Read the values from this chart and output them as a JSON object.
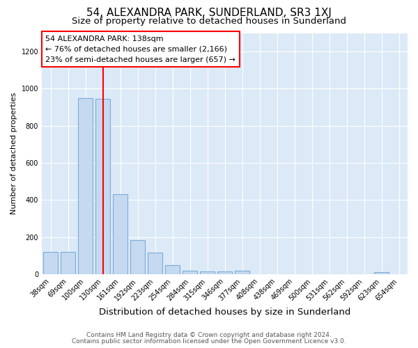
{
  "title": "54, ALEXANDRA PARK, SUNDERLAND, SR3 1XJ",
  "subtitle": "Size of property relative to detached houses in Sunderland",
  "xlabel": "Distribution of detached houses by size in Sunderland",
  "ylabel": "Number of detached properties",
  "categories": [
    "38sqm",
    "69sqm",
    "100sqm",
    "130sqm",
    "161sqm",
    "192sqm",
    "223sqm",
    "254sqm",
    "284sqm",
    "315sqm",
    "346sqm",
    "377sqm",
    "408sqm",
    "438sqm",
    "469sqm",
    "500sqm",
    "531sqm",
    "562sqm",
    "592sqm",
    "623sqm",
    "654sqm"
  ],
  "values": [
    120,
    120,
    950,
    945,
    430,
    185,
    115,
    47,
    18,
    15,
    15,
    18,
    0,
    0,
    0,
    0,
    0,
    0,
    0,
    10,
    0
  ],
  "bar_color": "#c5d9f1",
  "bar_edgecolor": "#7badd6",
  "red_line_index": 3.0,
  "annotation_line1": "54 ALEXANDRA PARK: 138sqm",
  "annotation_line2": "← 76% of detached houses are smaller (2,166)",
  "annotation_line3": "23% of semi-detached houses are larger (657) →",
  "ylim": [
    0,
    1300
  ],
  "yticks": [
    0,
    200,
    400,
    600,
    800,
    1000,
    1200
  ],
  "footnote1": "Contains HM Land Registry data © Crown copyright and database right 2024.",
  "footnote2": "Contains public sector information licensed under the Open Government Licence v3.0.",
  "figure_bg": "#ffffff",
  "axes_bg": "#dce9f7",
  "grid_color": "#ffffff",
  "title_fontsize": 11,
  "subtitle_fontsize": 9.5,
  "xlabel_fontsize": 9.5,
  "ylabel_fontsize": 8,
  "tick_fontsize": 7,
  "annotation_fontsize": 8,
  "footnote_fontsize": 6.5
}
